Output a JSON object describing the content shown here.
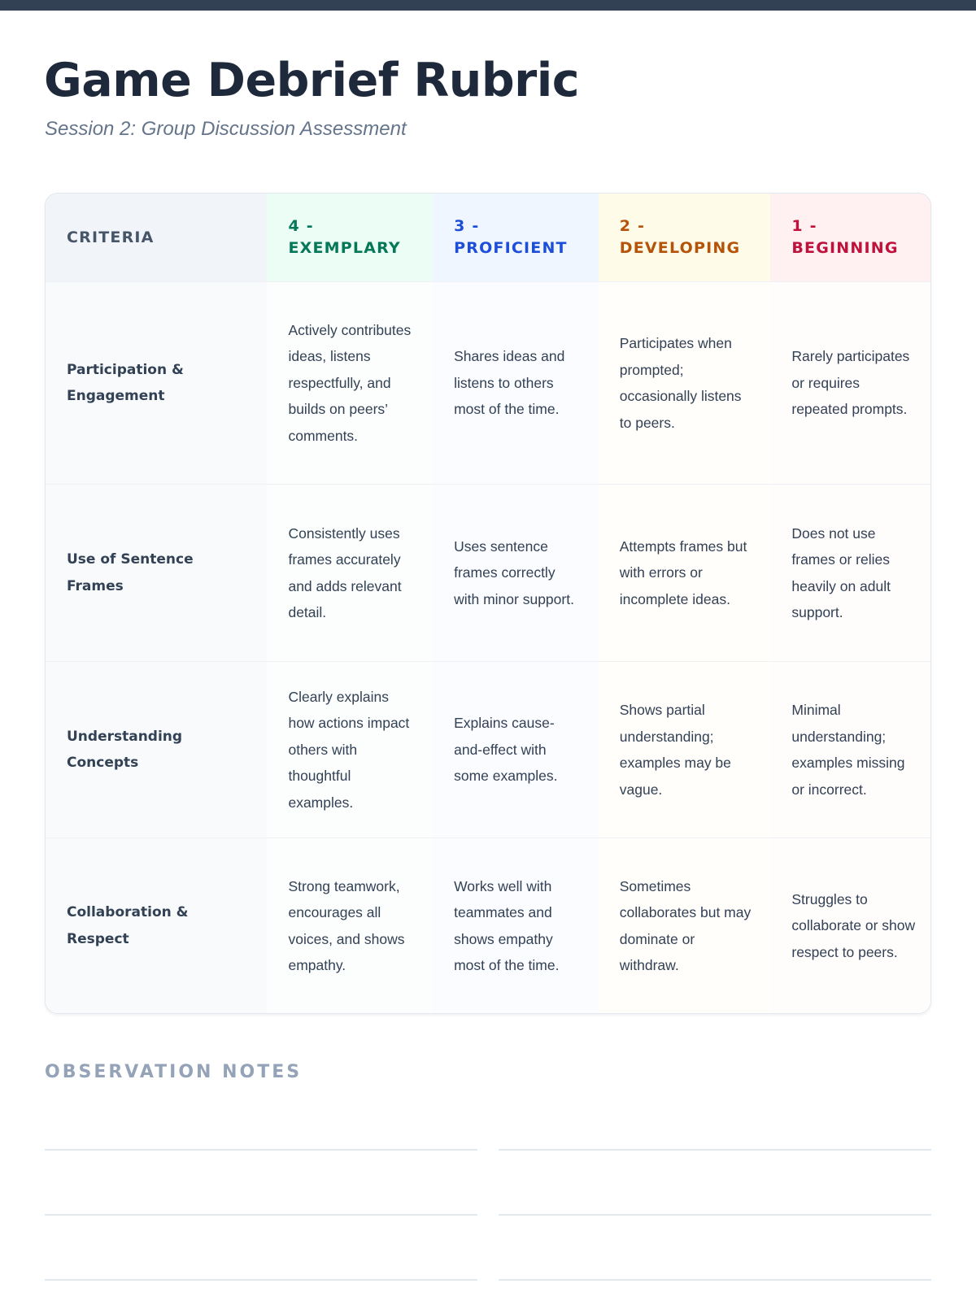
{
  "title": "Game Debrief Rubric",
  "subtitle": "Session 2: Group Discussion Assessment",
  "table": {
    "headers": [
      {
        "label": "CRITERIA"
      },
      {
        "label": "4 - EXEMPLARY",
        "color": "#047857"
      },
      {
        "label": "3 - PROFICIENT",
        "color": "#1d4ed8"
      },
      {
        "label": "2 - DEVELOPING",
        "color": "#b45309"
      },
      {
        "label": "1 - BEGINNING",
        "color": "#be123c"
      }
    ],
    "rows": [
      {
        "cells": [
          "Participation & Engagement",
          "Actively contributes ideas, listens respectfully, and builds on peers’ comments.",
          "Shares ideas and listens to others most of the time.",
          "Participates when prompted; occasionally listens to peers.",
          "Rarely participates or requires repeated prompts."
        ]
      },
      {
        "cells": [
          "Use of Sentence Frames",
          "Consistently uses frames accurately and adds relevant detail.",
          "Uses sentence frames correctly with minor support.",
          "Attempts frames but with errors or incomplete ideas.",
          "Does not use frames or relies heavily on adult support."
        ]
      },
      {
        "cells": [
          "Understanding Concepts",
          "Clearly explains how actions impact others with thoughtful examples.",
          "Explains cause-and-effect with some examples.",
          "Shows partial understanding; examples may be vague.",
          "Minimal understanding; examples missing or incorrect."
        ]
      },
      {
        "cells": [
          "Collaboration & Respect",
          "Strong teamwork, encourages all voices, and shows empathy.",
          "Works well with teammates and shows empathy most of the time.",
          "Sometimes collaborates but may dominate or withdraw.",
          "Struggles to collaborate or show respect to peers."
        ]
      }
    ]
  },
  "notes": {
    "title": "OBSERVATION NOTES"
  }
}
